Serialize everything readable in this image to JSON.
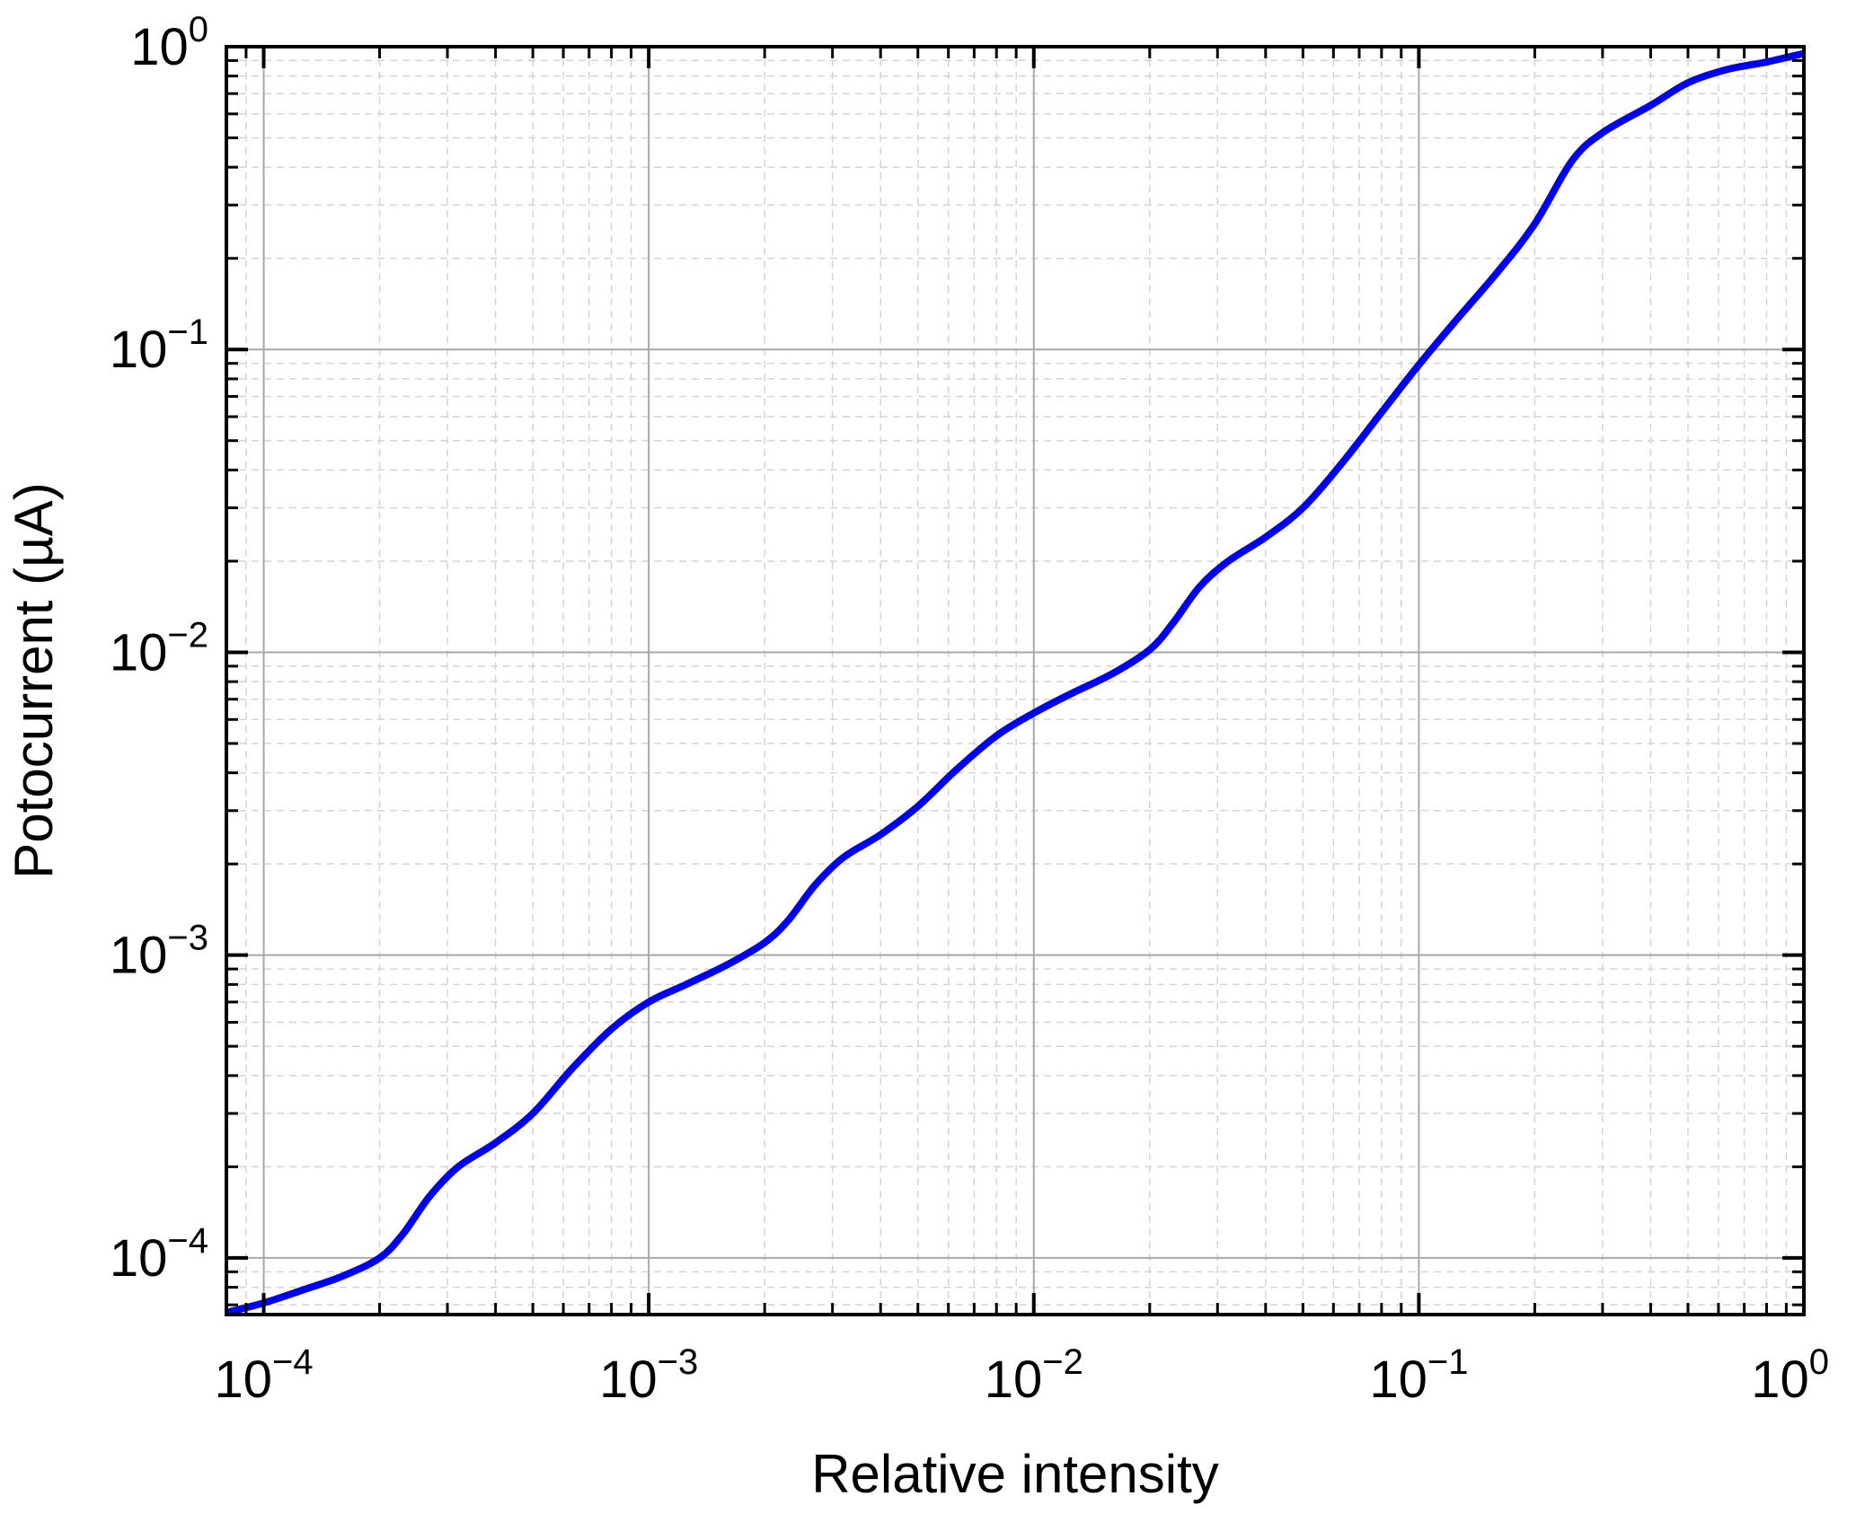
{
  "chart_data": {
    "type": "line",
    "title": "",
    "xlabel": "Relative intensity",
    "ylabel": "Potocurrent (µA)",
    "xscale": "log",
    "yscale": "log",
    "xlim": [
      8e-05,
      1
    ],
    "ylim": [
      6.5e-05,
      1
    ],
    "grid": true,
    "x_ticks": [
      {
        "value": 0.0001,
        "base": "10",
        "exp": "−4"
      },
      {
        "value": 0.001,
        "base": "10",
        "exp": "−3"
      },
      {
        "value": 0.01,
        "base": "10",
        "exp": "−2"
      },
      {
        "value": 0.1,
        "base": "10",
        "exp": "−1"
      },
      {
        "value": 1,
        "base": "10",
        "exp": "0"
      }
    ],
    "y_ticks": [
      {
        "value": 0.0001,
        "base": "10",
        "exp": "−4"
      },
      {
        "value": 0.001,
        "base": "10",
        "exp": "−3"
      },
      {
        "value": 0.01,
        "base": "10",
        "exp": "−2"
      },
      {
        "value": 0.1,
        "base": "10",
        "exp": "−1"
      },
      {
        "value": 1,
        "base": "10",
        "exp": "0"
      }
    ],
    "series": [
      {
        "color": "#0000ee",
        "x": [
          8e-05,
          0.0001,
          0.000125,
          0.00016,
          0.0002,
          0.00023,
          0.00027,
          0.00032,
          0.0004,
          0.0005,
          0.00063,
          0.0008,
          0.001,
          0.00125,
          0.0016,
          0.002,
          0.0023,
          0.0027,
          0.0032,
          0.004,
          0.005,
          0.0063,
          0.008,
          0.01,
          0.0125,
          0.016,
          0.02,
          0.023,
          0.027,
          0.032,
          0.04,
          0.05,
          0.063,
          0.08,
          0.1,
          0.125,
          0.16,
          0.2,
          0.25,
          0.3,
          0.4,
          0.5,
          0.63,
          0.8,
          1.0
        ],
        "y": [
          6.6e-05,
          7.1e-05,
          7.8e-05,
          8.7e-05,
          0.0001,
          0.00012,
          0.00016,
          0.0002,
          0.00024,
          0.0003,
          0.00042,
          0.00057,
          0.0007,
          0.0008,
          0.00093,
          0.0011,
          0.0013,
          0.0017,
          0.0021,
          0.0025,
          0.0031,
          0.0041,
          0.0053,
          0.0063,
          0.0073,
          0.0085,
          0.0102,
          0.0125,
          0.0165,
          0.02,
          0.024,
          0.03,
          0.042,
          0.062,
          0.089,
          0.125,
          0.18,
          0.26,
          0.42,
          0.52,
          0.64,
          0.76,
          0.84,
          0.89,
          0.95
        ]
      }
    ]
  }
}
